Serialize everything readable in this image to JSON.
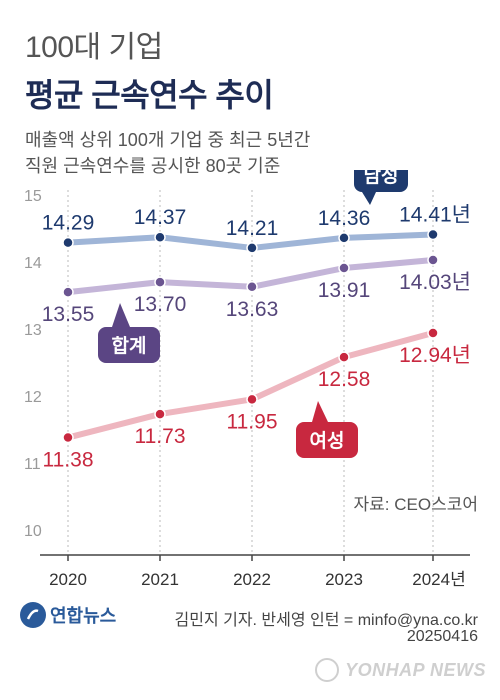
{
  "header": {
    "title_line1": "100대 기업",
    "title_line2": "평균 근속연수 추이",
    "subtitle_line1": "매출액 상위 100개 기업 중 최근 5년간",
    "subtitle_line2": "직원 근속연수를 공시한 80곳 기준"
  },
  "chart_data": {
    "type": "line",
    "x": [
      "2020",
      "2021",
      "2022",
      "2023",
      "2024년"
    ],
    "ylim": [
      10,
      15
    ],
    "yticks": [
      "10",
      "11",
      "12",
      "13",
      "14",
      "15"
    ],
    "series": [
      {
        "name": "남성",
        "values": [
          14.29,
          14.37,
          14.21,
          14.36,
          14.41
        ],
        "labels": [
          "14.29",
          "14.37",
          "14.21",
          "14.36",
          "14.41년"
        ],
        "line_color": "#9fb5d7",
        "point_color": "#1e3a6e",
        "label_color": "#1e3a6e",
        "tag_color": "#1e3a6e"
      },
      {
        "name": "합계",
        "values": [
          13.55,
          13.7,
          13.63,
          13.91,
          14.03
        ],
        "labels": [
          "13.55",
          "13.70",
          "13.63",
          "13.91",
          "14.03년"
        ],
        "line_color": "#c4b5d8",
        "point_color": "#6b5591",
        "label_color": "#55467a",
        "tag_color": "#5b4584"
      },
      {
        "name": "여성",
        "values": [
          11.38,
          11.73,
          11.95,
          12.58,
          12.94
        ],
        "labels": [
          "11.38",
          "11.73",
          "11.95",
          "12.58",
          "12.94년"
        ],
        "line_color": "#eeb6bf",
        "point_color": "#c8283f",
        "label_color": "#c8283f",
        "tag_color": "#c8283f"
      }
    ],
    "source": "자료: CEO스코어",
    "grid": "vertical dashed"
  },
  "footer": {
    "logo_text": "연합뉴스",
    "credit": "김민지 기자. 반세영 인턴 = minfo@yna.co.kr",
    "date": "20250416",
    "watermark": "YONHAP NEWS"
  }
}
